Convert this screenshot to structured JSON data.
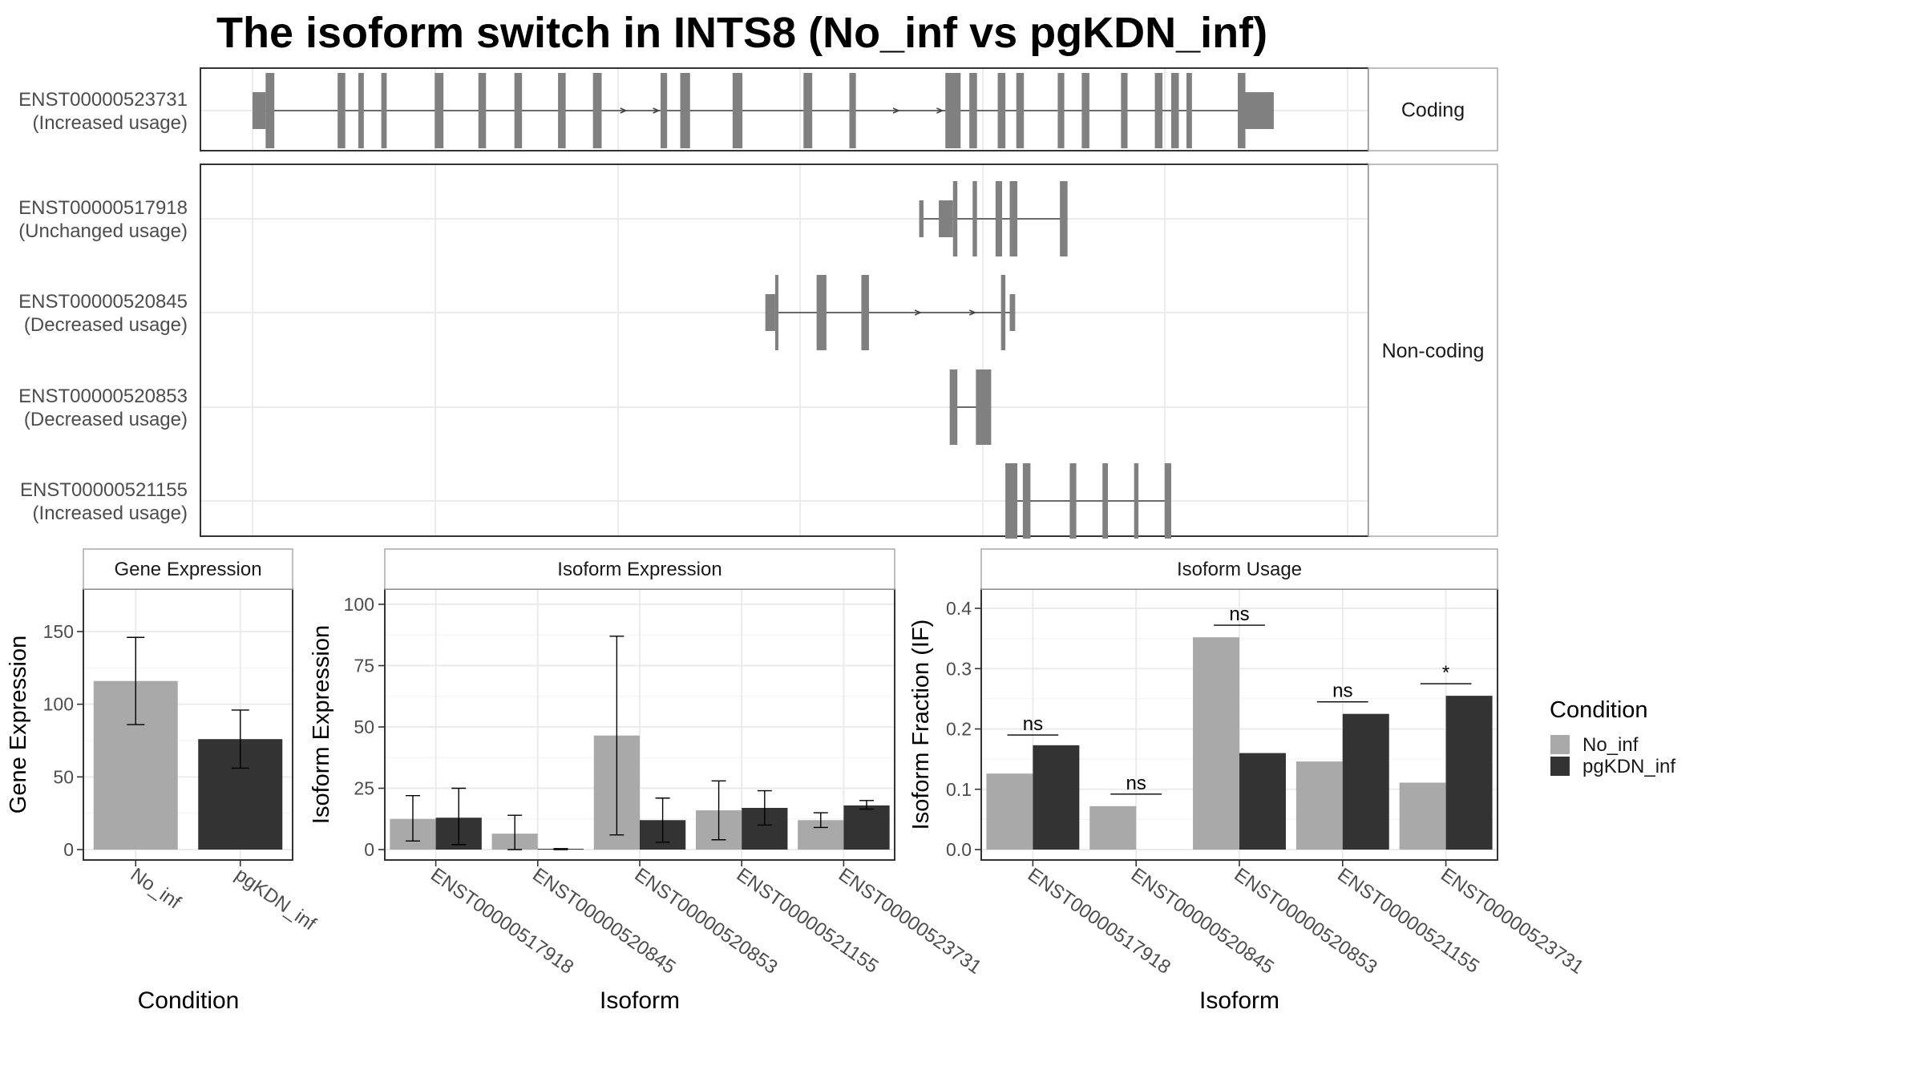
{
  "title": "The isoform switch in INTS8 (No_inf vs pgKDN_inf)",
  "colors": {
    "No_inf": "#a9a9a9",
    "pgKDN_inf": "#333333",
    "exon": "#808080",
    "strip_bg": "#ffffff"
  },
  "structure": {
    "groups": [
      {
        "name": "Coding",
        "tracks": [
          {
            "id": "ENST00000523731",
            "usage": "(Increased usage)",
            "exons": [
              [
                0.0,
                0.012,
                "u"
              ],
              [
                0.012,
                0.02
              ],
              [
                0.078,
                0.085
              ],
              [
                0.097,
                0.102
              ],
              [
                0.118,
                0.123
              ],
              [
                0.167,
                0.175
              ],
              [
                0.207,
                0.214
              ],
              [
                0.24,
                0.247
              ],
              [
                0.28,
                0.287
              ],
              [
                0.312,
                0.32
              ],
              [
                0.374,
                0.38
              ],
              [
                0.392,
                0.401
              ],
              [
                0.44,
                0.449
              ],
              [
                0.505,
                0.513
              ],
              [
                0.547,
                0.553
              ],
              [
                0.635,
                0.649
              ],
              [
                0.657,
                0.664
              ],
              [
                0.683,
                0.69
              ],
              [
                0.7,
                0.707
              ],
              [
                0.738,
                0.744
              ],
              [
                0.76,
                0.767
              ],
              [
                0.796,
                0.802
              ],
              [
                0.827,
                0.834
              ],
              [
                0.842,
                0.849
              ],
              [
                0.856,
                0.861
              ],
              [
                0.903,
                0.91
              ],
              [
                0.91,
                0.936,
                "u"
              ]
            ],
            "arrows": [
              0.34,
              0.37,
              0.59,
              0.63
            ]
          }
        ]
      },
      {
        "name": "Non-coding",
        "tracks": [
          {
            "id": "ENST00000517918",
            "usage": "(Unchanged usage)",
            "exons": [
              [
                0.611,
                0.615,
                "u"
              ],
              [
                0.629,
                0.642,
                "u"
              ],
              [
                0.642,
                0.646
              ],
              [
                0.66,
                0.664
              ],
              [
                0.681,
                0.687
              ],
              [
                0.694,
                0.701
              ],
              [
                0.74,
                0.747
              ]
            ],
            "arrows": []
          },
          {
            "id": "ENST00000520845",
            "usage": "(Decreased usage)",
            "exons": [
              [
                0.47,
                0.479,
                "u"
              ],
              [
                0.479,
                0.482
              ],
              [
                0.517,
                0.526
              ],
              [
                0.558,
                0.565
              ],
              [
                0.686,
                0.69
              ],
              [
                0.694,
                0.699,
                "u"
              ]
            ],
            "arrows": [
              0.61,
              0.66
            ]
          },
          {
            "id": "ENST00000520853",
            "usage": "(Decreased usage)",
            "exons": [
              [
                0.639,
                0.646
              ],
              [
                0.663,
                0.677
              ]
            ],
            "arrows": []
          },
          {
            "id": "ENST00000521155",
            "usage": "(Increased usage)",
            "exons": [
              [
                0.69,
                0.701
              ],
              [
                0.706,
                0.713
              ],
              [
                0.749,
                0.755
              ],
              [
                0.779,
                0.784
              ],
              [
                0.808,
                0.812
              ],
              [
                0.836,
                0.842
              ]
            ],
            "arrows": []
          }
        ]
      }
    ]
  },
  "chart_data": [
    {
      "type": "bar",
      "title": "Gene Expression",
      "xlabel": "Condition",
      "ylabel": "Gene Expression",
      "ylim": [
        0,
        180
      ],
      "yticks": [
        0,
        50,
        100,
        150
      ],
      "categories": [
        "No_inf",
        "pgKDN_inf"
      ],
      "values": [
        116,
        76
      ],
      "errors": [
        [
          86,
          146
        ],
        [
          56,
          96
        ]
      ]
    },
    {
      "type": "bar",
      "title": "Isoform Expression",
      "xlabel": "Isoform",
      "ylabel": "Isoform Expression",
      "ylim": [
        0,
        105
      ],
      "yticks": [
        0,
        25,
        50,
        75,
        100
      ],
      "categories": [
        "ENST00000517918",
        "ENST00000520845",
        "ENST00000520853",
        "ENST00000521155",
        "ENST00000523731"
      ],
      "series": [
        {
          "name": "No_inf",
          "values": [
            12.5,
            6.5,
            46.5,
            16,
            12
          ],
          "errors": [
            [
              3.5,
              22
            ],
            [
              0,
              14
            ],
            [
              6,
              87
            ],
            [
              4,
              28
            ],
            [
              9,
              15
            ]
          ]
        },
        {
          "name": "pgKDN_inf",
          "values": [
            13,
            0.2,
            12,
            17,
            18
          ],
          "errors": [
            [
              2,
              25
            ],
            [
              0,
              0.4
            ],
            [
              3,
              21
            ],
            [
              10,
              24
            ],
            [
              16.5,
              20
            ]
          ]
        }
      ]
    },
    {
      "type": "bar",
      "title": "Isoform Usage",
      "xlabel": "Isoform",
      "ylabel": "Isoform Fraction (IF)",
      "ylim": [
        -0.012,
        0.42
      ],
      "yticks": [
        0.0,
        0.1,
        0.2,
        0.3,
        0.4
      ],
      "ytick_labels": [
        "0.0",
        "0.1",
        "0.2",
        "0.3",
        "0.4"
      ],
      "categories": [
        "ENST00000517918",
        "ENST00000520845",
        "ENST00000520853",
        "ENST00000521155",
        "ENST00000523731"
      ],
      "series": [
        {
          "name": "No_inf",
          "values": [
            0.126,
            0.072,
            0.352,
            0.146,
            0.111
          ]
        },
        {
          "name": "pgKDN_inf",
          "values": [
            0.173,
            0.0,
            0.16,
            0.225,
            0.255
          ]
        }
      ],
      "annotations": [
        {
          "label": "ns",
          "y": 0.19
        },
        {
          "label": "ns",
          "y": 0.092
        },
        {
          "label": "ns",
          "y": 0.372
        },
        {
          "label": "ns",
          "y": 0.245
        },
        {
          "label": "*",
          "y": 0.275
        }
      ]
    }
  ],
  "legend": {
    "title": "Condition",
    "entries": [
      "No_inf",
      "pgKDN_inf"
    ]
  }
}
